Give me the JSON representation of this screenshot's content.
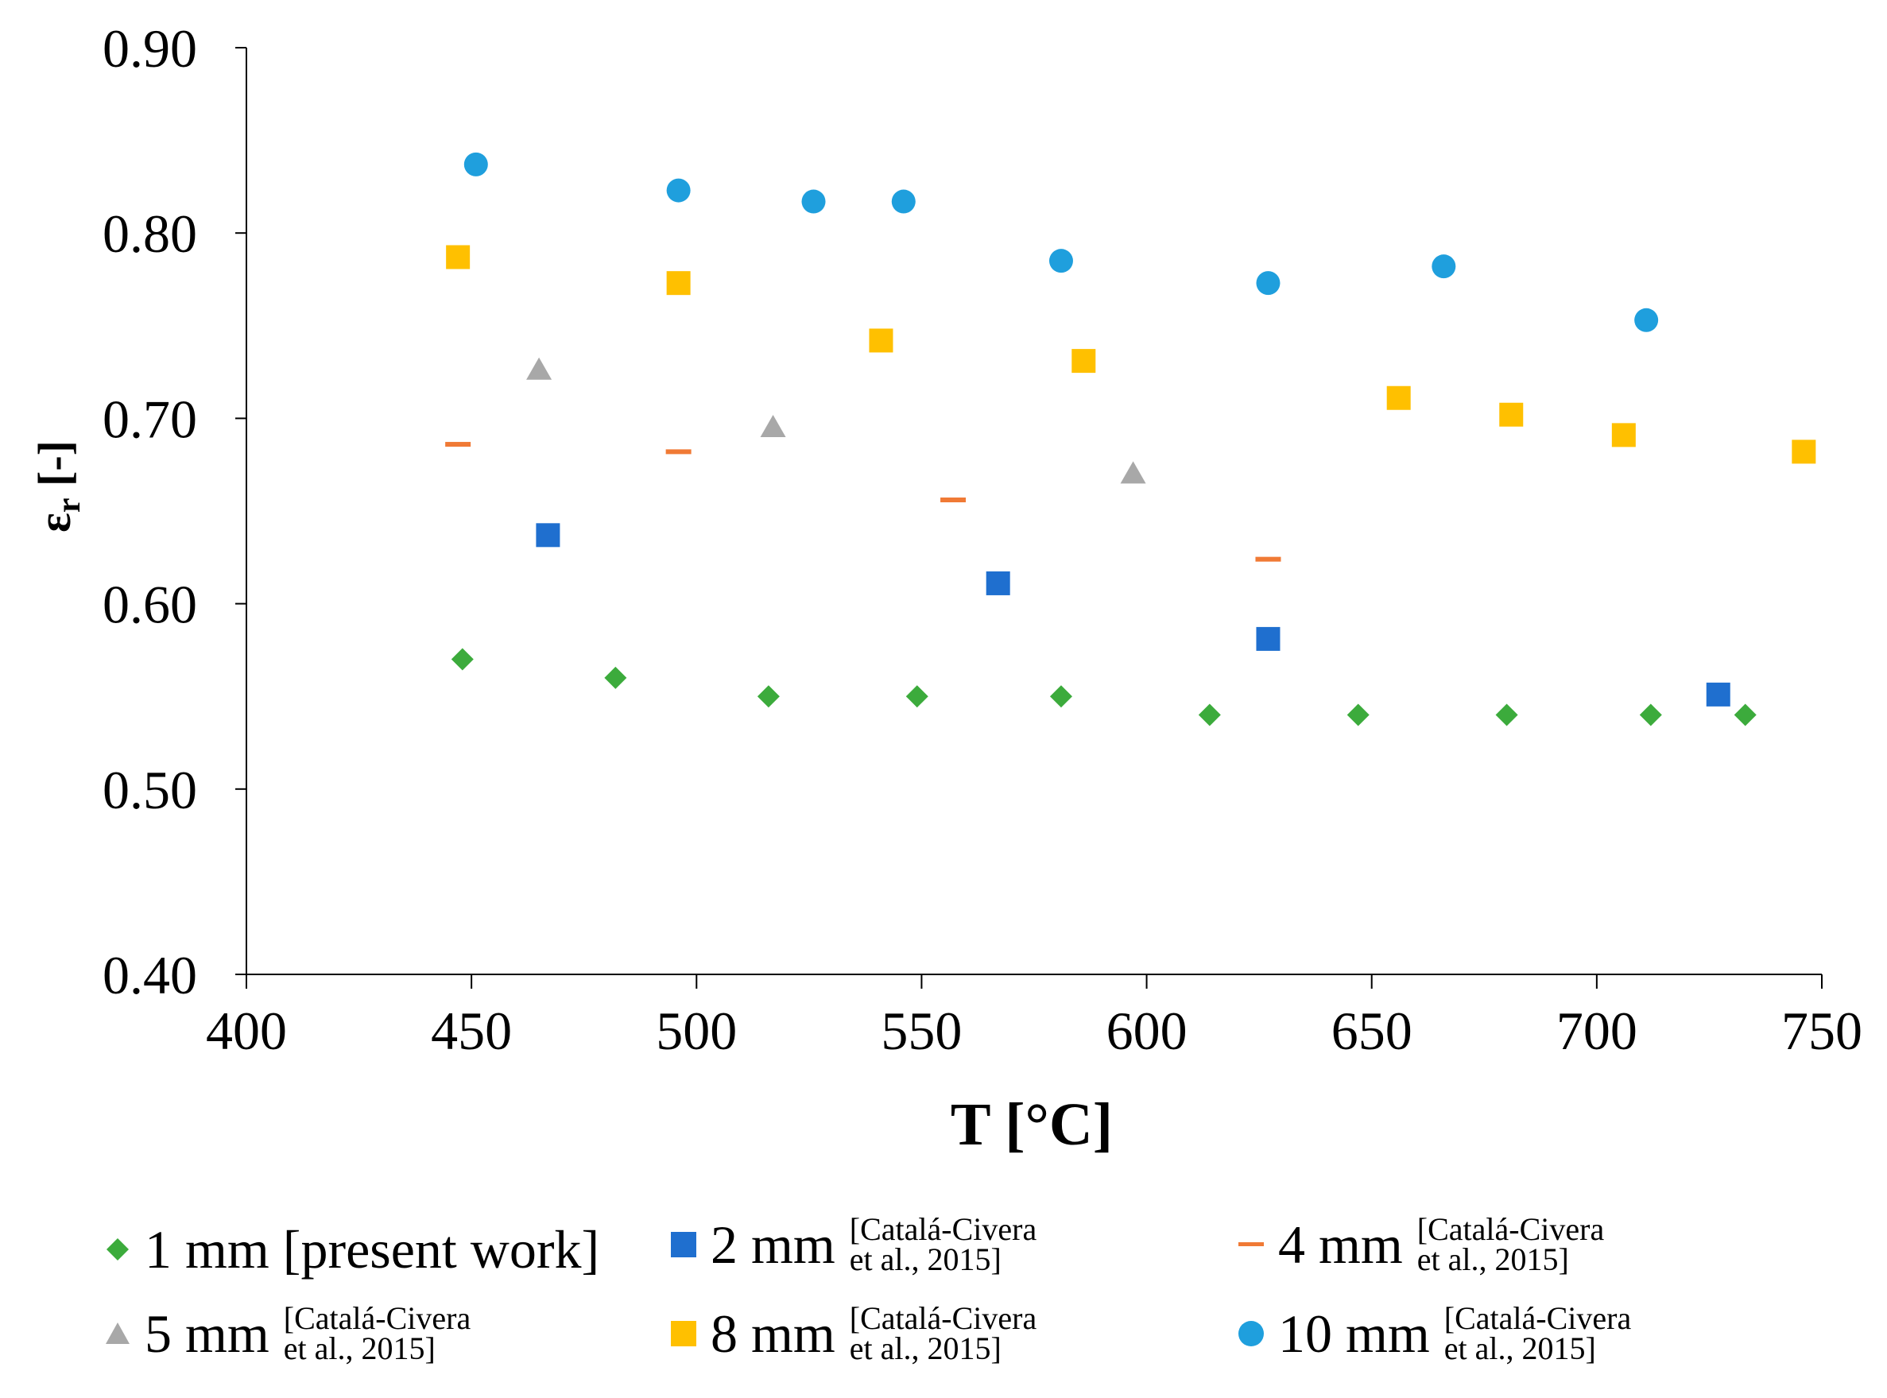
{
  "chart_data": {
    "type": "scatter",
    "title": "",
    "xlabel": "T [°C]",
    "ylabel_main": "ε",
    "ylabel_sub": "r",
    "ylabel_unit": " [-]",
    "xlim": [
      400,
      750
    ],
    "ylim": [
      0.4,
      0.9
    ],
    "xticks": [
      400,
      450,
      500,
      550,
      600,
      650,
      700,
      750
    ],
    "yticks": [
      0.4,
      0.5,
      0.6,
      0.7,
      0.8,
      0.9
    ],
    "ytick_labels": [
      "0.40",
      "0.50",
      "0.60",
      "0.70",
      "0.80",
      "0.90"
    ],
    "grid": false,
    "legend_position": "bottom",
    "series": [
      {
        "name": "1 mm",
        "ref": "[present work]",
        "marker": "diamond",
        "color": "#3cab3c",
        "x": [
          448,
          482,
          516,
          549,
          581,
          614,
          647,
          680,
          712,
          733
        ],
        "y": [
          0.57,
          0.56,
          0.55,
          0.55,
          0.55,
          0.54,
          0.54,
          0.54,
          0.54,
          0.54
        ]
      },
      {
        "name": "2 mm",
        "ref_line1": "[Catalá-Civera",
        "ref_line2": "et al.,  2015]",
        "marker": "square",
        "color": "#1f6fcf",
        "x": [
          467,
          567,
          627,
          727
        ],
        "y": [
          0.637,
          0.611,
          0.581,
          0.551
        ]
      },
      {
        "name": "4 mm",
        "ref_line1": "[Catalá-Civera",
        "ref_line2": "et al.,  2015]",
        "marker": "dash",
        "color": "#f07a35",
        "x": [
          447,
          496,
          557,
          627
        ],
        "y": [
          0.686,
          0.682,
          0.656,
          0.624
        ]
      },
      {
        "name": "5 mm",
        "ref_line1": "[Catalá-Civera",
        "ref_line2": "et al.,  2015]",
        "marker": "triangle",
        "color": "#a8a8a8",
        "x": [
          465,
          517,
          597
        ],
        "y": [
          0.726,
          0.695,
          0.67
        ]
      },
      {
        "name": "8 mm",
        "ref_line1": "[Catalá-Civera",
        "ref_line2": "et al.,  2015]",
        "marker": "square",
        "color": "#ffc000",
        "x": [
          447,
          496,
          541,
          586,
          656,
          681,
          706,
          746
        ],
        "y": [
          0.787,
          0.773,
          0.742,
          0.731,
          0.711,
          0.702,
          0.691,
          0.682
        ]
      },
      {
        "name": "10 mm",
        "ref_line1": "[Catalá-Civera",
        "ref_line2": "et al.,  2015]",
        "marker": "circle",
        "color": "#1f9fdd",
        "x": [
          451,
          496,
          526,
          546,
          581,
          627,
          666,
          711
        ],
        "y": [
          0.837,
          0.823,
          0.817,
          0.817,
          0.785,
          0.773,
          0.782,
          0.753
        ]
      }
    ]
  }
}
